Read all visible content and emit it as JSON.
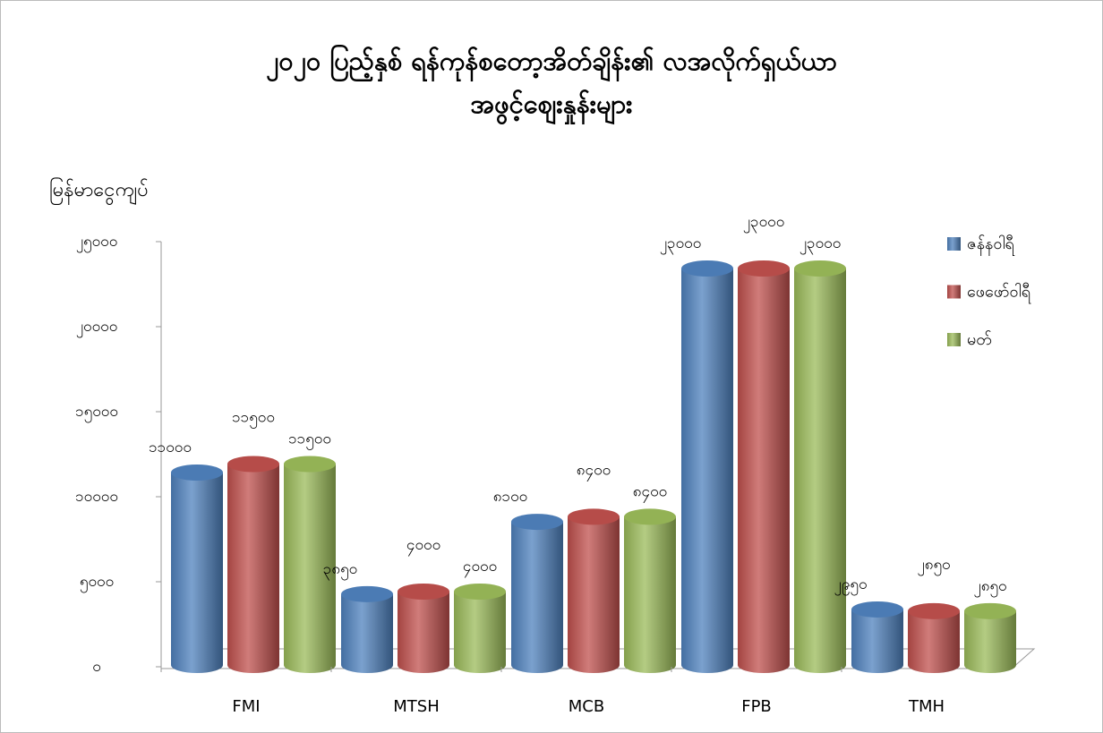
{
  "chart_data": {
    "type": "bar3d",
    "title": [
      "၂၀၂၀ ပြည့်နှစ် ရန်ကုန်စတော့အိတ်ချိန်း၏ လအလိုက်ရှယ်ယာ",
      "အဖွင့်စျေးနှုန်းများ"
    ],
    "y_label": "မြန်မာငွေကျပ်",
    "categories": [
      "FMI",
      "MTSH",
      "MCB",
      "FPB",
      "TMH"
    ],
    "series": [
      {
        "name": "ဇန်နဝါရီ",
        "color": "#4f81bd",
        "values": [
          11000,
          3850,
          8100,
          23000,
          2950
        ],
        "value_labels": [
          "၁၁၀၀၀",
          "၃၈၅၀",
          "၈၁၀၀",
          "၂၃၀၀၀",
          "၂၉၅၀"
        ]
      },
      {
        "name": "ဖေဖော်ဝါရီ",
        "color": "#c0504d",
        "values": [
          11500,
          4000,
          8400,
          23000,
          2850
        ],
        "value_labels": [
          "၁၁၅၀၀",
          "၄၀၀၀",
          "၈၄၀၀",
          "၂၃၀၀၀",
          "၂၈၅၀"
        ]
      },
      {
        "name": "မတ်",
        "color": "#9bbb59",
        "values": [
          11500,
          4000,
          8400,
          23000,
          2850
        ],
        "value_labels": [
          "၁၁၅၀၀",
          "၄၀၀၀",
          "၈၄၀၀",
          "၂၃၀၀၀",
          "၂၈၅၀"
        ]
      }
    ],
    "ylim": [
      0,
      25000
    ],
    "yticks": [
      {
        "value": 0,
        "label": "၀"
      },
      {
        "value": 5000,
        "label": "၅၀၀၀"
      },
      {
        "value": 10000,
        "label": "၁၀၀၀၀"
      },
      {
        "value": 15000,
        "label": "၁၅၀၀၀"
      },
      {
        "value": 20000,
        "label": "၂၀၀၀၀"
      },
      {
        "value": 25000,
        "label": "၂၅၀၀၀"
      }
    ],
    "legend": "right"
  }
}
